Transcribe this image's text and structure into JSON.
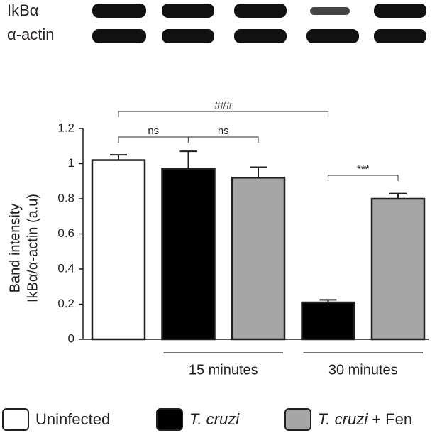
{
  "blot": {
    "labels": [
      "IkBα",
      "α-actin"
    ]
  },
  "chart_data": {
    "type": "bar",
    "ylabel": [
      "Band intensity",
      "IkBα/α-actin (a.u)"
    ],
    "categories": [
      null,
      null,
      null,
      null,
      null
    ],
    "values": [
      1.02,
      0.97,
      0.92,
      0.21,
      0.8
    ],
    "errors": [
      0.03,
      0.1,
      0.06,
      0.015,
      0.03
    ],
    "colors": [
      "#ffffff",
      "#000000",
      "#a6a6a6",
      "#000000",
      "#a6a6a6"
    ],
    "ylim": [
      0,
      1.2
    ],
    "yticks": [
      0,
      0.2,
      0.4,
      0.6,
      0.8,
      1,
      1.2
    ],
    "groups": [
      "15 minutes",
      "30 minutes"
    ],
    "annotations": [
      {
        "text": "###",
        "from": 0,
        "to": 3
      },
      {
        "text": "ns",
        "from": 0,
        "to": 1
      },
      {
        "text": "ns",
        "from": 1,
        "to": 2
      },
      {
        "text": "***",
        "from": 3,
        "to": 4
      }
    ],
    "legend": [
      {
        "color": "#ffffff",
        "label": [
          {
            "text": "Uninfected"
          }
        ]
      },
      {
        "color": "#000000",
        "label": [
          {
            "text": "T. cruzi",
            "italic": true
          }
        ]
      },
      {
        "color": "#a6a6a6",
        "label": [
          {
            "text": "T. cruzi",
            "italic": true
          },
          {
            "text": " + Fen"
          }
        ]
      }
    ]
  }
}
